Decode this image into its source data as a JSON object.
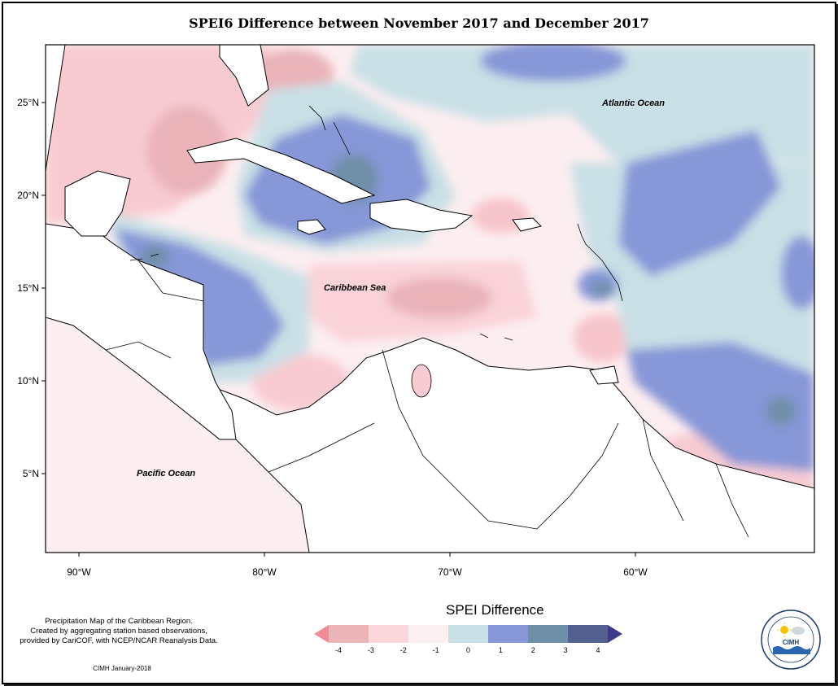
{
  "title": "SPEI6 Difference between November 2017 and December 2017",
  "map": {
    "lat_ticks": [
      {
        "value": 25,
        "label": "25°N"
      },
      {
        "value": 20,
        "label": "20°N"
      },
      {
        "value": 15,
        "label": "15°N"
      },
      {
        "value": 10,
        "label": "10°N"
      },
      {
        "value": 5,
        "label": "5°N"
      }
    ],
    "lon_ticks": [
      {
        "value": -90,
        "label": "90°W"
      },
      {
        "value": -80,
        "label": "80°W"
      },
      {
        "value": -70,
        "label": "70°W"
      },
      {
        "value": -60,
        "label": "60°W"
      }
    ],
    "ocean_labels": {
      "atlantic": "Atlantic Ocean",
      "caribbean": "Caribbean Sea",
      "pacific": "Pacific Ocean"
    }
  },
  "legend": {
    "title": "SPEI Difference",
    "tick_labels": [
      "-4",
      "-3",
      "-2",
      "-1",
      "0",
      "1",
      "2",
      "3",
      "4"
    ],
    "colors": [
      "#f08c95",
      "#eab4b9",
      "#fbd7dc",
      "#fdf0f1",
      "#c9e0e6",
      "#8797d8",
      "#6f8fa8",
      "#54608f",
      "#3d3b8a"
    ]
  },
  "notes": {
    "description_lines": [
      "Precipitation Map of the Caribbean Region.",
      "Created by aggregating station based observations,",
      "provided by CariCOF, with NCEP/NCAR Reanalysis Data."
    ],
    "credit": "CIMH January-2018"
  },
  "logo": {
    "text": "CIMH"
  }
}
